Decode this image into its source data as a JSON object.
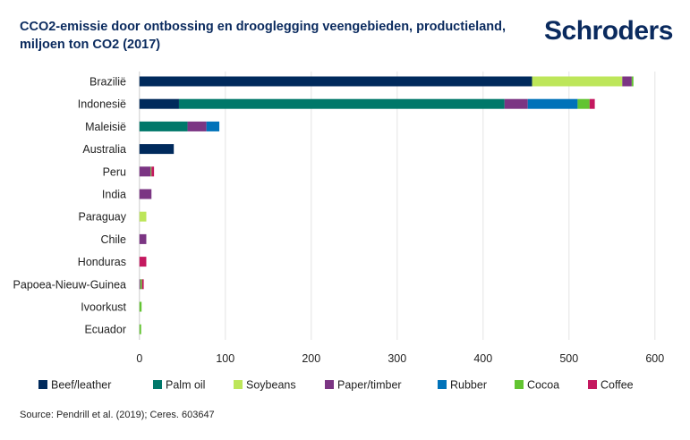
{
  "header": {
    "title": "CCO2-emissie door ontbossing en drooglegging veengebieden, productieland, miljoen ton CO2 (2017)",
    "logo": "Schroders"
  },
  "source": "Source: Pendrill et al. (2019); Ceres. 603647",
  "chart_data": {
    "type": "bar",
    "orientation": "horizontal",
    "stacked": true,
    "categories": [
      "Brazilië",
      "Indonesië",
      "Maleisië",
      "Australia",
      "Peru",
      "India",
      "Paraguay",
      "Chile",
      "Honduras",
      "Papoea-Nieuw-Guinea",
      "Ivoorkust",
      "Ecuador"
    ],
    "xlim": [
      0,
      600
    ],
    "xticks": [
      0,
      100,
      200,
      300,
      400,
      500,
      600
    ],
    "grid": true,
    "legend": "bottom",
    "series": [
      {
        "name": "Beef/leather",
        "color": "#002a5c",
        "values": [
          457,
          46,
          0,
          40,
          0,
          0,
          0,
          0,
          0,
          0,
          0,
          0
        ]
      },
      {
        "name": "Palm oil",
        "color": "#00786a",
        "values": [
          0,
          379,
          56,
          0,
          0,
          0,
          0,
          0,
          0,
          0,
          0,
          0
        ]
      },
      {
        "name": "Soybeans",
        "color": "#bde65a",
        "values": [
          105,
          0,
          0,
          0,
          0,
          0,
          8,
          0,
          0,
          0,
          0,
          0
        ]
      },
      {
        "name": "Paper/timber",
        "color": "#7b3583",
        "values": [
          11,
          27,
          22,
          0,
          13,
          14,
          0,
          8,
          0,
          1,
          0,
          0
        ]
      },
      {
        "name": "Rubber",
        "color": "#0072b9",
        "values": [
          0,
          58,
          15,
          0,
          0,
          0,
          0,
          0,
          0,
          0,
          0,
          0
        ]
      },
      {
        "name": "Cocoa",
        "color": "#62c431",
        "values": [
          2,
          14,
          0,
          0,
          1,
          0,
          0,
          0,
          0,
          2,
          2.5,
          2
        ]
      },
      {
        "name": "Coffee",
        "color": "#c4185f",
        "values": [
          0,
          6,
          0,
          0,
          3,
          0,
          0,
          0,
          8,
          2,
          0,
          0
        ]
      }
    ]
  }
}
